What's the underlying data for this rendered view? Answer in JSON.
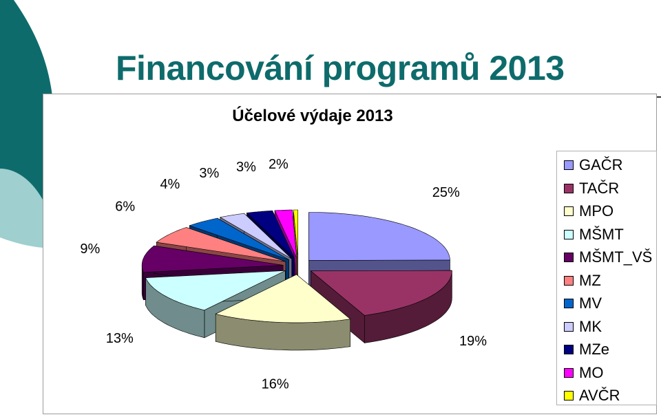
{
  "slide": {
    "title": "Financování programů 2013"
  },
  "colors": {
    "title": "#0e6b6b",
    "deco_dark": "#0e6b6b",
    "deco_light": "#9fcfcf"
  },
  "chart_data": {
    "type": "pie",
    "title": "Účelové výdaje 2013",
    "three_d": true,
    "legend_position": "right",
    "series": [
      {
        "labels": [
          "GAČR",
          "TAČR",
          "MPO",
          "MŠMT",
          "MŠMT_VŠ",
          "MZ",
          "MV",
          "MK",
          "MZe",
          "MO",
          "AVČR"
        ],
        "values": [
          25,
          19,
          16,
          13,
          9,
          6,
          4,
          3,
          3,
          2,
          0.5
        ],
        "data_labels": [
          "25%",
          "19%",
          "16%",
          "13%",
          "9%",
          "6%",
          "4%",
          "3%",
          "3%",
          "2%",
          ""
        ],
        "colors": [
          "#9999ff",
          "#993366",
          "#ffffcc",
          "#ccffff",
          "#660066",
          "#ff8080",
          "#0066cc",
          "#ccccff",
          "#000080",
          "#ff00ff",
          "#ffff00"
        ]
      }
    ]
  }
}
